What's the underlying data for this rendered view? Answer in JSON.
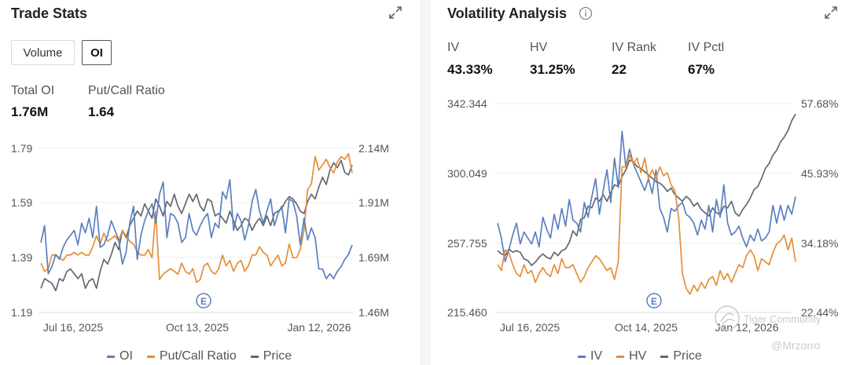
{
  "left_panel": {
    "title": "Trade Stats",
    "toggles": [
      {
        "label": "Volume",
        "active": false
      },
      {
        "label": "OI",
        "active": true
      }
    ],
    "stats": [
      {
        "label": "Total OI",
        "value": "1.76M"
      },
      {
        "label": "Put/Call Ratio",
        "value": "1.64"
      }
    ]
  },
  "right_panel": {
    "title": "Volatility Analysis",
    "stats": [
      {
        "label": "IV",
        "value": "43.33%"
      },
      {
        "label": "HV",
        "value": "31.25%"
      },
      {
        "label": "IV Rank",
        "value": "22"
      },
      {
        "label": "IV Pctl",
        "value": "67%"
      }
    ]
  },
  "colors": {
    "blue": "#5b7fbf",
    "orange": "#e58e3a",
    "gray": "#65686e"
  },
  "watermark": {
    "brand": "Tiger Community",
    "user": "@Mrzorro"
  },
  "chart_data": [
    {
      "type": "line",
      "title": "Trade Stats",
      "x_ticks": [
        "Jul 16, 2025",
        "Oct 13, 2025",
        "Jan 12, 2026"
      ],
      "left_axis": {
        "ticks": [
          "1.79",
          "1.59",
          "1.39",
          "1.19"
        ],
        "range": [
          1.19,
          1.79
        ]
      },
      "right_axis": {
        "ticks": [
          "2.14M",
          "1.91M",
          "1.69M",
          "1.46M"
        ],
        "range": [
          1.46,
          2.14
        ]
      },
      "event_marker": {
        "label": "E",
        "at": "Oct 24, 2025"
      },
      "legend": [
        "OI",
        "Put/Call Ratio",
        "Price"
      ],
      "series": [
        {
          "name": "OI",
          "axis": "right",
          "color_key": "blue",
          "values": [
            1.75,
            1.82,
            1.62,
            1.65,
            1.7,
            1.68,
            1.73,
            1.76,
            1.78,
            1.8,
            1.74,
            1.83,
            1.79,
            1.85,
            1.77,
            1.9,
            1.73,
            1.74,
            1.78,
            1.84,
            1.8,
            1.76,
            1.66,
            1.71,
            1.83,
            1.9,
            1.68,
            1.78,
            1.84,
            1.88,
            1.91,
            1.83,
            1.95,
            2.0,
            1.77,
            1.87,
            1.86,
            1.83,
            1.75,
            1.77,
            1.87,
            1.8,
            1.78,
            1.82,
            1.85,
            1.87,
            1.77,
            1.83,
            1.81,
            1.96,
            1.93,
            2.01,
            1.8,
            1.87,
            1.84,
            1.76,
            1.82,
            1.92,
            1.97,
            1.88,
            1.83,
            1.88,
            1.93,
            1.82,
            1.87,
            1.9,
            1.79,
            1.93,
            1.92,
            1.86,
            1.74,
            1.85,
            1.76,
            1.81,
            1.77,
            1.64,
            1.64,
            1.6,
            1.62,
            1.6,
            1.63,
            1.65,
            1.68,
            1.7,
            1.74
          ]
        },
        {
          "name": "Put/Call Ratio",
          "axis": "left",
          "color_key": "orange",
          "values": [
            1.37,
            1.34,
            1.35,
            1.4,
            1.4,
            1.39,
            1.38,
            1.4,
            1.4,
            1.41,
            1.4,
            1.41,
            1.4,
            1.4,
            1.43,
            1.47,
            1.44,
            1.48,
            1.45,
            1.46,
            1.47,
            1.45,
            1.49,
            1.47,
            1.45,
            1.44,
            1.41,
            1.4,
            1.4,
            1.42,
            1.39,
            1.56,
            1.31,
            1.33,
            1.34,
            1.35,
            1.34,
            1.33,
            1.37,
            1.34,
            1.33,
            1.35,
            1.3,
            1.31,
            1.36,
            1.37,
            1.34,
            1.33,
            1.35,
            1.4,
            1.36,
            1.38,
            1.34,
            1.37,
            1.38,
            1.34,
            1.36,
            1.4,
            1.4,
            1.43,
            1.41,
            1.4,
            1.36,
            1.38,
            1.4,
            1.36,
            1.37,
            1.44,
            1.39,
            1.39,
            1.42,
            1.49,
            1.64,
            1.66,
            1.76,
            1.71,
            1.73,
            1.75,
            1.72,
            1.7,
            1.74,
            1.76,
            1.75,
            1.77,
            1.7
          ]
        },
        {
          "name": "Price",
          "axis": "right",
          "color_key": "gray",
          "values": [
            1.56,
            1.6,
            1.59,
            1.58,
            1.55,
            1.6,
            1.59,
            1.63,
            1.64,
            1.62,
            1.6,
            1.62,
            1.56,
            1.59,
            1.6,
            1.56,
            1.63,
            1.68,
            1.66,
            1.7,
            1.75,
            1.72,
            1.8,
            1.77,
            1.82,
            1.85,
            1.88,
            1.86,
            1.91,
            1.88,
            1.85,
            1.93,
            1.9,
            1.86,
            1.92,
            1.9,
            1.95,
            1.9,
            1.87,
            1.91,
            1.95,
            1.92,
            1.95,
            1.9,
            1.88,
            1.93,
            1.92,
            1.86,
            1.87,
            1.85,
            1.83,
            1.88,
            1.84,
            1.8,
            1.82,
            1.85,
            1.84,
            1.8,
            1.83,
            1.85,
            1.82,
            1.86,
            1.82,
            1.87,
            1.88,
            1.89,
            1.92,
            1.94,
            1.93,
            1.91,
            1.88,
            1.87,
            1.92,
            1.95,
            1.93,
            1.98,
            2.02,
            1.99,
            2.05,
            2.08,
            2.06,
            2.09,
            2.04,
            2.03,
            2.07
          ]
        }
      ]
    },
    {
      "type": "line",
      "title": "Volatility Analysis",
      "x_ticks": [
        "Jul 16, 2025",
        "Oct 14, 2025",
        "Jan 12, 2026"
      ],
      "left_axis": {
        "ticks": [
          "342.344",
          "300.049",
          "257.755",
          "215.460"
        ],
        "range": [
          215.46,
          342.344
        ]
      },
      "right_axis": {
        "ticks": [
          "57.68%",
          "45.93%",
          "34.18%",
          "22.44%"
        ],
        "range": [
          22.44,
          57.68
        ]
      },
      "event_marker": {
        "label": "E",
        "at": "Oct 24, 2025"
      },
      "legend": [
        "IV",
        "HV",
        "Price"
      ],
      "series": [
        {
          "name": "IV",
          "axis": "right",
          "color_key": "blue",
          "values": [
            37.5,
            35.0,
            31.0,
            33.0,
            35.5,
            37.5,
            34.0,
            36.0,
            35.0,
            34.0,
            36.0,
            33.5,
            38.5,
            36.5,
            35.0,
            39.0,
            36.5,
            40.0,
            37.0,
            41.5,
            38.0,
            37.5,
            36.0,
            41.0,
            38.5,
            42.0,
            45.0,
            39.0,
            43.0,
            46.5,
            41.0,
            48.5,
            43.5,
            53.0,
            47.0,
            50.0,
            47.5,
            46.0,
            44.5,
            43.0,
            45.0,
            42.5,
            46.5,
            40.0,
            38.5,
            36.0,
            40.0,
            39.5,
            40.5,
            41.0,
            39.0,
            38.5,
            37.5,
            35.5,
            38.0,
            36.5,
            40.5,
            36.0,
            41.5,
            38.5,
            44.0,
            37.5,
            35.5,
            36.0,
            37.0,
            35.0,
            33.5,
            35.5,
            34.5,
            36.5,
            34.5,
            35.0,
            36.0,
            40.5,
            37.5,
            40.5,
            38.0,
            40.5,
            39.0,
            42.0
          ]
        },
        {
          "name": "HV",
          "axis": "right",
          "color_key": "orange",
          "values": [
            30.5,
            29.5,
            33.0,
            32.5,
            30.5,
            29.0,
            28.5,
            30.5,
            29.0,
            29.5,
            27.5,
            29.0,
            30.0,
            29.0,
            28.5,
            30.5,
            29.0,
            31.5,
            30.0,
            30.0,
            30.5,
            29.0,
            27.5,
            28.5,
            30.0,
            31.0,
            32.0,
            31.5,
            30.5,
            29.5,
            30.0,
            28.0,
            31.0,
            47.0,
            47.0,
            49.0,
            47.5,
            48.5,
            46.0,
            48.5,
            45.0,
            46.5,
            45.0,
            47.0,
            45.5,
            46.0,
            44.0,
            43.0,
            38.5,
            29.0,
            26.5,
            25.5,
            27.0,
            26.0,
            27.5,
            26.5,
            28.0,
            28.5,
            27.0,
            29.5,
            28.0,
            29.0,
            27.5,
            29.0,
            30.5,
            30.0,
            32.0,
            33.0,
            32.0,
            29.5,
            31.5,
            31.0,
            30.5,
            32.5,
            34.0,
            34.5,
            35.5,
            33.0,
            35.0,
            31.0
          ]
        },
        {
          "name": "Price",
          "axis": "left",
          "color_key": "gray",
          "values": [
            253.0,
            251.0,
            250.0,
            254.0,
            252.0,
            253.0,
            252.0,
            248.0,
            247.0,
            244.0,
            246.0,
            249.0,
            251.0,
            249.0,
            248.0,
            252.0,
            250.0,
            253.0,
            254.0,
            258.0,
            265.0,
            262.0,
            272.0,
            273.0,
            280.0,
            279.0,
            285.0,
            283.0,
            287.0,
            283.0,
            288.0,
            293.0,
            292.0,
            298.0,
            302.0,
            308.0,
            307.0,
            304.0,
            303.0,
            301.0,
            299.0,
            297.0,
            295.0,
            294.0,
            292.0,
            289.0,
            291.0,
            287.0,
            285.0,
            283.0,
            286.0,
            284.0,
            280.0,
            282.0,
            278.0,
            276.0,
            274.0,
            279.0,
            276.0,
            275.0,
            280.0,
            279.0,
            283.0,
            276.0,
            274.0,
            278.0,
            281.0,
            285.0,
            290.0,
            292.0,
            297.0,
            303.0,
            306.0,
            311.0,
            314.0,
            319.0,
            322.0,
            326.0,
            332.0,
            336.0
          ]
        }
      ]
    }
  ]
}
